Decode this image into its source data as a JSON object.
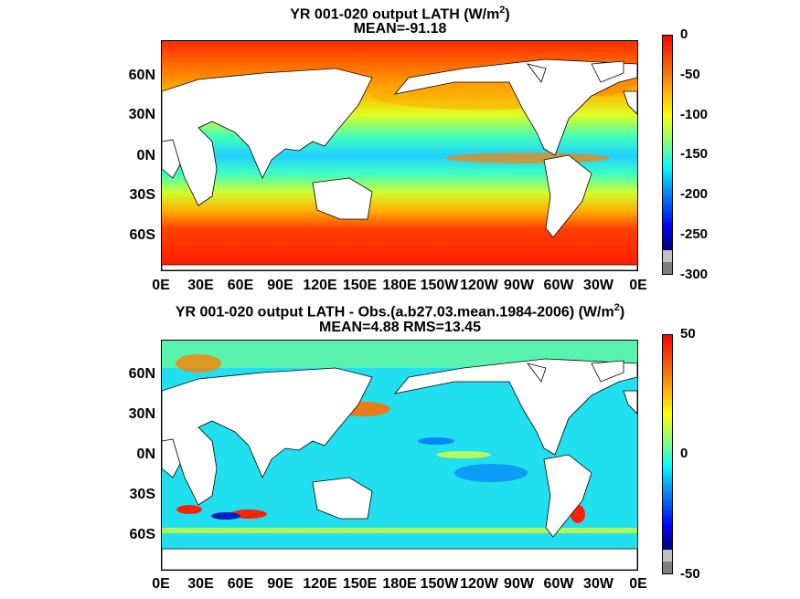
{
  "top": {
    "title_line1": "YR 001-020 output  LATH (W/m",
    "title_sup": "2",
    "title_close": ")",
    "title_line2": "MEAN=-91.18",
    "colorbar_ticks": [
      "0",
      "-50",
      "-100",
      "-150",
      "-200",
      "-250",
      "-300"
    ]
  },
  "bottom": {
    "title_line1": "YR 001-020 output LATH - Obs.(a.b27.03.mean.1984-2006) (W/m",
    "title_sup": "2",
    "title_close": ")",
    "title_line2": "MEAN=4.88 RMS=13.45",
    "colorbar_ticks": [
      "50",
      "0",
      "-50"
    ]
  },
  "axes": {
    "lat_ticks": [
      "60N",
      "30N",
      "0N",
      "30S",
      "60S"
    ],
    "lon_ticks": [
      "0E",
      "30E",
      "60E",
      "90E",
      "120E",
      "150E",
      "180E",
      "150W",
      "120W",
      "90W",
      "60W",
      "30W",
      "0E"
    ]
  },
  "colors": {
    "colormap": [
      "#00007f",
      "#0000ff",
      "#007fff",
      "#00ffff",
      "#7fff7f",
      "#ffff00",
      "#ff7f00",
      "#ff0000"
    ],
    "land": "#ffffff",
    "missing": "#7f7f7f"
  }
}
